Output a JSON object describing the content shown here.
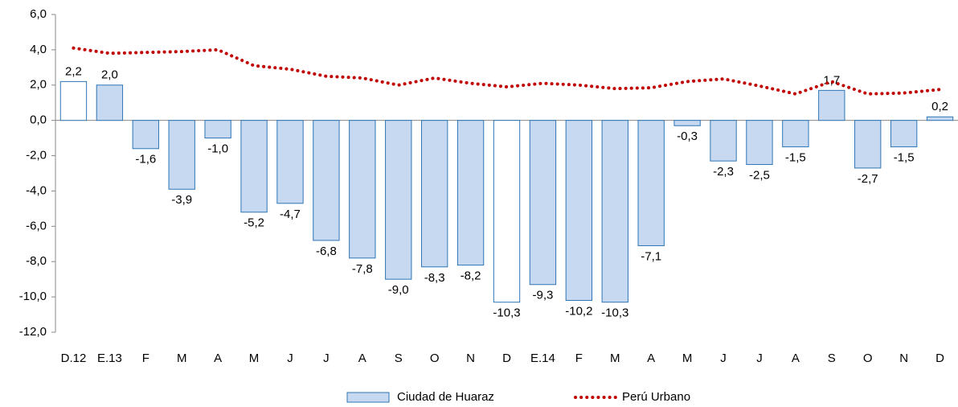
{
  "chart_data": {
    "type": "bar",
    "categories": [
      "D.12",
      "E.13",
      "F",
      "M",
      "A",
      "M",
      "J",
      "J",
      "A",
      "S",
      "O",
      "N",
      "D",
      "E.14",
      "F",
      "M",
      "A",
      "M",
      "J",
      "J",
      "A",
      "S",
      "O",
      "N",
      "D"
    ],
    "series": [
      {
        "name": "Ciudad de Huaraz",
        "type": "bar",
        "color": "#c6d9f1",
        "edge_color": "#2e75b6",
        "colors": [
          "#ffffff",
          "#c6d9f1",
          "#c6d9f1",
          "#c6d9f1",
          "#c6d9f1",
          "#c6d9f1",
          "#c6d9f1",
          "#c6d9f1",
          "#c6d9f1",
          "#c6d9f1",
          "#c6d9f1",
          "#c6d9f1",
          "#ffffff",
          "#c6d9f1",
          "#c6d9f1",
          "#c6d9f1",
          "#c6d9f1",
          "#c6d9f1",
          "#c6d9f1",
          "#c6d9f1",
          "#c6d9f1",
          "#c6d9f1",
          "#c6d9f1",
          "#c6d9f1",
          "#c6d9f1"
        ],
        "values": [
          2.2,
          2.0,
          -1.6,
          -3.9,
          -1.0,
          -5.2,
          -4.7,
          -6.8,
          -7.8,
          -9.0,
          -8.3,
          -8.2,
          -10.3,
          -9.3,
          -10.2,
          -10.3,
          -7.1,
          -0.3,
          -2.3,
          -2.5,
          -1.5,
          1.7,
          -2.7,
          -1.5,
          0.2
        ],
        "value_labels": [
          "2,2",
          "2,0",
          "-1,6",
          "-3,9",
          "-1,0",
          "-5,2",
          "-4,7",
          "-6,8",
          "-7,8",
          "-9,0",
          "-8,3",
          "-8,2",
          "-10,3",
          "-9,3",
          "-10,2",
          "-10,3",
          "-7,1",
          "-0,3",
          "-2,3",
          "-2,5",
          "-1,5",
          "1,7",
          "-2,7",
          "-1,5",
          "0,2"
        ]
      },
      {
        "name": "Perú Urbano",
        "type": "line",
        "color": "#c00000",
        "values": [
          4.1,
          3.8,
          3.85,
          3.9,
          4.0,
          3.1,
          2.9,
          2.5,
          2.4,
          2.0,
          2.4,
          2.1,
          1.9,
          2.1,
          2.0,
          1.8,
          1.85,
          2.2,
          2.35,
          1.95,
          1.5,
          2.2,
          1.5,
          1.55,
          1.75
        ]
      }
    ],
    "ylim": [
      -12,
      6
    ],
    "yticks": [
      {
        "value": -12,
        "label": "-12,0"
      },
      {
        "value": -10,
        "label": "-10,0"
      },
      {
        "value": -8,
        "label": "-8,0"
      },
      {
        "value": -6,
        "label": "-6,0"
      },
      {
        "value": -4,
        "label": "-4,0"
      },
      {
        "value": -2,
        "label": "-2,0"
      },
      {
        "value": 0,
        "label": "0,0"
      },
      {
        "value": 2,
        "label": "2,0"
      },
      {
        "value": 4,
        "label": "4,0"
      },
      {
        "value": 6,
        "label": "6,0"
      }
    ],
    "legend": "bottom"
  }
}
